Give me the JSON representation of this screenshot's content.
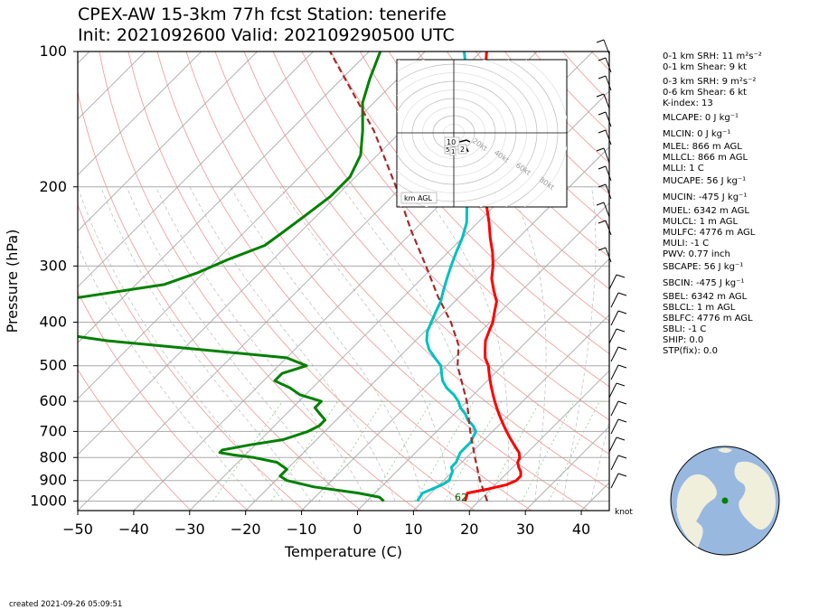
{
  "title_line1": "CPEX-AW 15-3km  77h fcst  Station: tenerife",
  "title_line2": "Init: 2021092600  Valid: 202109290500 UTC",
  "footer": "created 2021-09-26 05:09:51",
  "indices": [
    {
      "text": "0-1 km SRH: 11 m²s⁻²"
    },
    {
      "text": "0-1 km Shear: 9 kt"
    },
    {
      "text": "0-3 km SRH: 9 m²s⁻²"
    },
    {
      "text": "0-6 km Shear: 6 kt"
    },
    {
      "text": "K-index: 13"
    },
    {
      "text": "MLCAPE: 0 J kg⁻¹"
    },
    {
      "text": "MLCIN: 0 J kg⁻¹"
    },
    {
      "text": "MLEL: 866 m AGL"
    },
    {
      "text": "MLLCL: 866 m AGL"
    },
    {
      "text": "MLLI: 1 C"
    },
    {
      "text": "MUCAPE: 56 J kg⁻¹"
    },
    {
      "text": "MUCIN: -475 J kg⁻¹"
    },
    {
      "text": "MUEL: 6342 m AGL"
    },
    {
      "text": "MULCL: 1 m AGL"
    },
    {
      "text": "MULFC: 4776 m AGL"
    },
    {
      "text": "MULI: -1 C"
    },
    {
      "text": "PWV: 0.77 inch"
    },
    {
      "text": "SBCAPE: 56 J kg⁻¹"
    },
    {
      "text": "SBCIN: -475 J kg⁻¹"
    },
    {
      "text": "SBEL: 6342 m AGL"
    },
    {
      "text": "SBLCL: 1 m AGL"
    },
    {
      "text": "SBLFC: 4776 m AGL"
    },
    {
      "text": "SBLI: -1 C"
    },
    {
      "text": "SHIP: 0.0"
    },
    {
      "text": "STP(fix): 0.0"
    }
  ],
  "chart_data": {
    "type": "line",
    "subtype": "skew-T log-P diagram",
    "xlabel": "Temperature (C)",
    "ylabel": "Pressure (hPa)",
    "xlim": [
      -50,
      45
    ],
    "ylim": [
      1050,
      100
    ],
    "y_scale": "log",
    "x_ticks": [
      -50,
      -40,
      -30,
      -20,
      -10,
      0,
      10,
      20,
      30,
      40
    ],
    "y_ticks": [
      100,
      200,
      300,
      400,
      500,
      600,
      700,
      800,
      900,
      1000
    ],
    "grid": true,
    "skew": 45,
    "series": [
      {
        "key": "temperature",
        "color": "#ff0000",
        "points": [
          [
            1000,
            17.5
          ],
          [
            985,
            17.2
          ],
          [
            960,
            16.5
          ],
          [
            940,
            19.5
          ],
          [
            920,
            22
          ],
          [
            900,
            23
          ],
          [
            880,
            23
          ],
          [
            860,
            22.2
          ],
          [
            840,
            21
          ],
          [
            820,
            20
          ],
          [
            800,
            19.5
          ],
          [
            780,
            18.5
          ],
          [
            760,
            17
          ],
          [
            740,
            15.5
          ],
          [
            720,
            14
          ],
          [
            700,
            12.5
          ],
          [
            680,
            11
          ],
          [
            660,
            9.5
          ],
          [
            640,
            8
          ],
          [
            620,
            6.5
          ],
          [
            600,
            5
          ],
          [
            580,
            3.5
          ],
          [
            560,
            2
          ],
          [
            540,
            0.5
          ],
          [
            520,
            -1
          ],
          [
            500,
            -2.5
          ],
          [
            480,
            -4.5
          ],
          [
            460,
            -6
          ],
          [
            440,
            -7.5
          ],
          [
            420,
            -8.5
          ],
          [
            400,
            -9.5
          ],
          [
            380,
            -11
          ],
          [
            360,
            -12.5
          ],
          [
            340,
            -15
          ],
          [
            320,
            -17.5
          ],
          [
            300,
            -19.5
          ],
          [
            280,
            -22
          ],
          [
            260,
            -25
          ],
          [
            240,
            -28
          ],
          [
            220,
            -31.5
          ],
          [
            200,
            -35
          ],
          [
            180,
            -39.5
          ],
          [
            160,
            -44
          ],
          [
            140,
            -48
          ],
          [
            120,
            -53
          ],
          [
            100,
            -59
          ]
        ]
      },
      {
        "key": "dewpoint",
        "color": "#00c0c0",
        "points": [
          [
            1000,
            9
          ],
          [
            960,
            8.5
          ],
          [
            940,
            9.5
          ],
          [
            920,
            10.5
          ],
          [
            900,
            11
          ],
          [
            880,
            10.5
          ],
          [
            860,
            10
          ],
          [
            840,
            9
          ],
          [
            820,
            9
          ],
          [
            800,
            8.5
          ],
          [
            780,
            8
          ],
          [
            760,
            8
          ],
          [
            740,
            8
          ],
          [
            720,
            7.5
          ],
          [
            700,
            7
          ],
          [
            680,
            5.5
          ],
          [
            660,
            3.5
          ],
          [
            640,
            2
          ],
          [
            620,
            0
          ],
          [
            600,
            -1.5
          ],
          [
            580,
            -3.5
          ],
          [
            560,
            -6
          ],
          [
            540,
            -8
          ],
          [
            520,
            -9.5
          ],
          [
            500,
            -11
          ],
          [
            480,
            -13.5
          ],
          [
            460,
            -16
          ],
          [
            440,
            -18
          ],
          [
            420,
            -19.5
          ],
          [
            400,
            -20.5
          ],
          [
            380,
            -21.5
          ],
          [
            360,
            -22.5
          ],
          [
            340,
            -24
          ],
          [
            320,
            -25.5
          ],
          [
            300,
            -27
          ],
          [
            280,
            -28.5
          ],
          [
            260,
            -30
          ],
          [
            240,
            -32
          ],
          [
            220,
            -35
          ],
          [
            200,
            -38
          ],
          [
            180,
            -41.5
          ],
          [
            160,
            -45
          ],
          [
            140,
            -50
          ],
          [
            120,
            -56
          ],
          [
            100,
            -63
          ]
        ]
      },
      {
        "key": "dewpoint-2",
        "color": "#008000",
        "points": [
          [
            1000,
            3
          ],
          [
            980,
            1.5
          ],
          [
            960,
            -3
          ],
          [
            930,
            -12
          ],
          [
            900,
            -18
          ],
          [
            880,
            -20
          ],
          [
            850,
            -20
          ],
          [
            820,
            -23
          ],
          [
            800,
            -28
          ],
          [
            790,
            -32
          ],
          [
            780,
            -35
          ],
          [
            770,
            -35
          ],
          [
            750,
            -31
          ],
          [
            730,
            -26
          ],
          [
            700,
            -23
          ],
          [
            680,
            -22
          ],
          [
            660,
            -22
          ],
          [
            640,
            -24
          ],
          [
            620,
            -26
          ],
          [
            600,
            -26
          ],
          [
            580,
            -31
          ],
          [
            560,
            -34
          ],
          [
            540,
            -38
          ],
          [
            520,
            -38
          ],
          [
            500,
            -35
          ],
          [
            480,
            -40
          ],
          [
            460,
            -57
          ],
          [
            440,
            -75
          ],
          [
            420,
            -88
          ],
          [
            400,
            -96
          ],
          [
            380,
            -97
          ],
          [
            360,
            -92
          ],
          [
            330,
            -75
          ],
          [
            310,
            -71
          ],
          [
            290,
            -68
          ],
          [
            270,
            -64
          ],
          [
            250,
            -63
          ],
          [
            230,
            -62
          ],
          [
            210,
            -61
          ],
          [
            190,
            -61
          ],
          [
            170,
            -63
          ],
          [
            150,
            -67
          ],
          [
            130,
            -72
          ],
          [
            115,
            -75
          ],
          [
            100,
            -78
          ]
        ]
      },
      {
        "key": "parcel",
        "color": "#a52a2a",
        "style": "dashed",
        "points": [
          [
            1000,
            21.5
          ],
          [
            900,
            16.5
          ],
          [
            800,
            11.5
          ],
          [
            700,
            6
          ],
          [
            600,
            0
          ],
          [
            500,
            -8
          ],
          [
            450,
            -11.5
          ],
          [
            400,
            -17
          ],
          [
            350,
            -24
          ],
          [
            300,
            -31.5
          ],
          [
            250,
            -40.5
          ],
          [
            200,
            -51
          ],
          [
            150,
            -65
          ],
          [
            100,
            -87
          ]
        ]
      }
    ],
    "surface_label": "62",
    "wind_units": "knot",
    "hodograph": {
      "rings_label": [
        "20kt",
        "40kt",
        "60kt",
        "80kt"
      ],
      "box_label": "km AGL",
      "height_labels": [
        "10",
        "5",
        "1",
        "2"
      ]
    }
  }
}
